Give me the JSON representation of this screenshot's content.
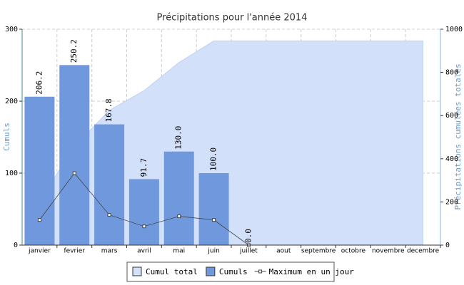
{
  "chart_data": {
    "type": "bar",
    "title": "Précipitations pour l'année 2014",
    "y_label": "Cumuls",
    "y2_label": "Précipitations cumulées totales",
    "categories": [
      "janvier",
      "fevrier",
      "mars",
      "avril",
      "mai",
      "juin",
      "juillet",
      "aout",
      "septembre",
      "octobre",
      "novembre",
      "decembre"
    ],
    "series": [
      {
        "name": "Cumul total",
        "type": "area",
        "axis": "y2",
        "color": "#d2e0f9",
        "values": [
          206.2,
          456.4,
          624.2,
          715.9,
          845.9,
          945.9,
          945.9,
          945.9,
          945.9,
          945.9,
          945.9,
          945.9
        ]
      },
      {
        "name": "Cumuls",
        "type": "bar",
        "color": "#7099dd",
        "values": [
          206.2,
          250.2,
          167.8,
          91.7,
          130.0,
          100.0,
          0.0,
          null,
          null,
          null,
          null,
          null
        ],
        "value_labels": [
          "206.2",
          "250.2",
          "167.8",
          "91.7",
          "130.0",
          "100.0",
          "0.0",
          null,
          null,
          null,
          null,
          null
        ]
      },
      {
        "name": "Maximum en un jour",
        "type": "line",
        "color": "#444444",
        "values": [
          35,
          100,
          42,
          26,
          40,
          35,
          0,
          null,
          null,
          null,
          null,
          null
        ]
      }
    ],
    "ylim": [
      0,
      300
    ],
    "yticks": [
      0,
      100,
      200,
      300
    ],
    "y2lim": [
      0,
      1000
    ],
    "y2ticks": [
      0,
      200,
      400,
      600,
      800,
      1000
    ],
    "grid": true,
    "legend": "bottom"
  }
}
